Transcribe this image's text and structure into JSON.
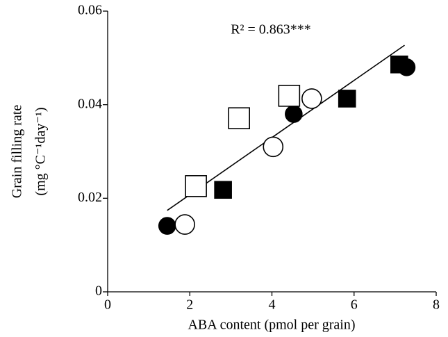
{
  "chart_data": {
    "type": "scatter",
    "annotation": "R² = 0.863***",
    "xlabel": "ABA content (pmol per grain)",
    "ylabel": "Grain filling rate",
    "ylabel_units": "(mg °C⁻¹day⁻¹)",
    "xlim": [
      0,
      8
    ],
    "ylim": [
      0,
      0.06
    ],
    "xticks": [
      0,
      2,
      4,
      6,
      8
    ],
    "yticks": [
      0,
      0.02,
      0.04,
      0.06
    ],
    "series": [
      {
        "marker": "circle",
        "filled": true,
        "color": "#000000",
        "x": [
          1.45,
          4.53,
          7.28
        ],
        "values": [
          0.0141,
          0.038,
          0.048
        ]
      },
      {
        "marker": "circle",
        "filled": false,
        "color": "#000000",
        "x": [
          1.88,
          4.03,
          4.97
        ],
        "values": [
          0.0144,
          0.031,
          0.0413
        ]
      },
      {
        "marker": "square",
        "filled": false,
        "color": "#000000",
        "x": [
          2.15,
          3.2,
          4.42
        ],
        "values": [
          0.0226,
          0.0371,
          0.0419
        ]
      },
      {
        "marker": "square",
        "filled": true,
        "color": "#000000",
        "x": [
          2.81,
          5.83,
          7.1
        ],
        "values": [
          0.0218,
          0.0413,
          0.0486
        ]
      }
    ],
    "trendline": {
      "color": "#000000",
      "x": [
        1.45,
        7.23
      ],
      "values": [
        0.0174,
        0.0527
      ]
    }
  }
}
